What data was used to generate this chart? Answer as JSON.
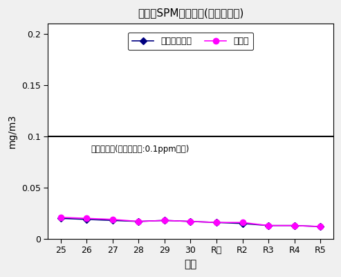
{
  "title": "市内のSPM経年変化(年間平均値)",
  "xlabel": "年度",
  "ylabel": "mg/m3",
  "x_labels": [
    "25",
    "26",
    "27",
    "28",
    "29",
    "30",
    "R元",
    "R2",
    "R3",
    "R4",
    "R5"
  ],
  "series1_label": "一般局　平均",
  "series2_label": "自排局",
  "series1_values": [
    0.02,
    0.019,
    0.018,
    0.017,
    0.018,
    0.017,
    0.016,
    0.015,
    0.013,
    0.013,
    0.012
  ],
  "series2_values": [
    0.021,
    0.02,
    0.019,
    0.017,
    0.018,
    0.017,
    0.016,
    0.016,
    0.013,
    0.013,
    0.012
  ],
  "series1_color": "#000080",
  "series2_color": "#FF00FF",
  "reference_line_y": 0.1,
  "reference_label": "環境基準値(１日平均値:0.1ppm以下)",
  "ylim": [
    0,
    0.21
  ],
  "yticks": [
    0,
    0.05,
    0.1,
    0.15,
    0.2
  ],
  "ytick_labels": [
    "0",
    "0.05",
    "0.1",
    "0.15",
    "0.2"
  ],
  "background_color": "#f0f0f0",
  "plot_bg_color": "#ffffff"
}
